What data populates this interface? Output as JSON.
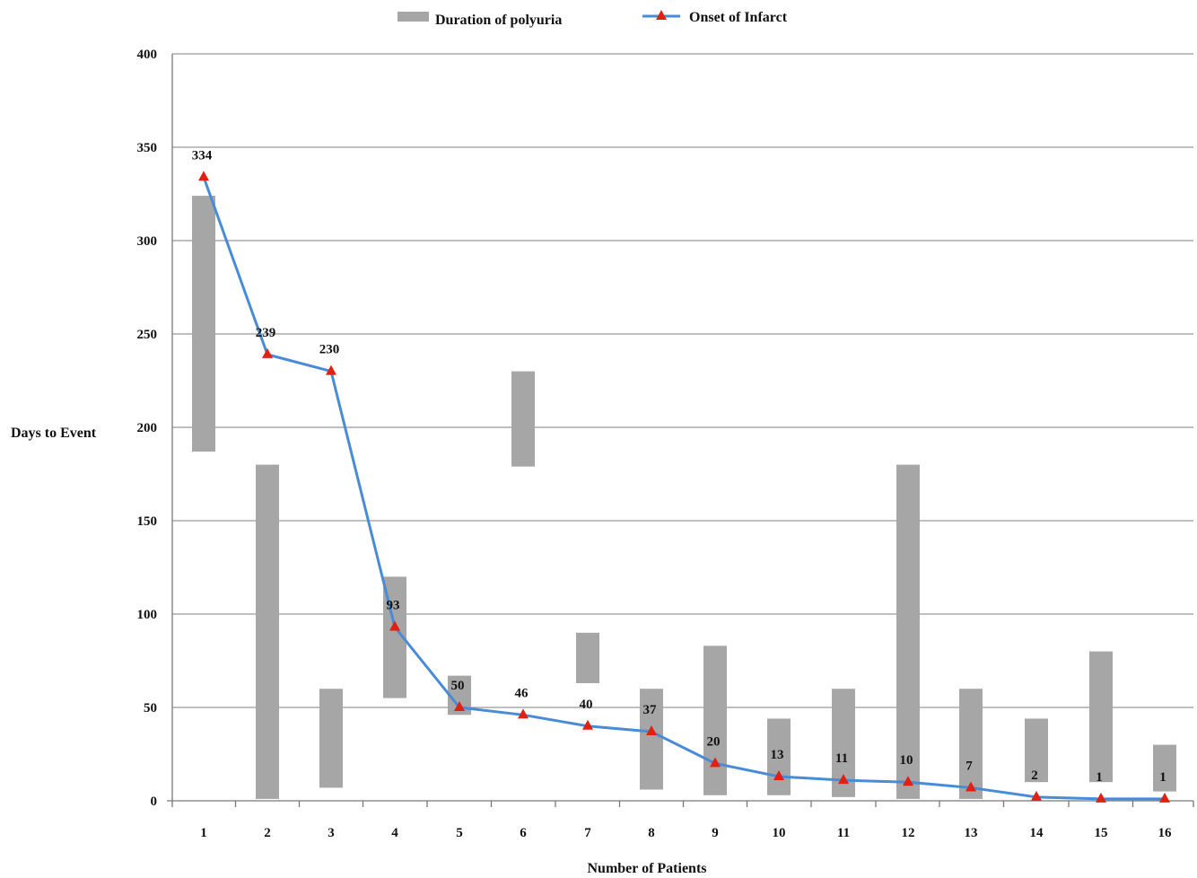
{
  "chart_data": {
    "type": "bar",
    "xlabel": "Number of Patients",
    "ylabel": "Days to Event",
    "ylim": [
      0,
      400
    ],
    "yticks": [
      0,
      50,
      100,
      150,
      200,
      250,
      300,
      350,
      400
    ],
    "grid": true,
    "legend_position": "top",
    "categories": [
      "1",
      "2",
      "3",
      "4",
      "5",
      "6",
      "7",
      "8",
      "9",
      "10",
      "11",
      "12",
      "13",
      "14",
      "15",
      "16"
    ],
    "series": [
      {
        "name": "Duration of polyuria",
        "type": "floating-bar",
        "color": "#a6a6a6",
        "ranges": [
          [
            187,
            324
          ],
          [
            1,
            180
          ],
          [
            7,
            60
          ],
          [
            55,
            120
          ],
          [
            46,
            67
          ],
          [
            179,
            230
          ],
          [
            63,
            90
          ],
          [
            6,
            60
          ],
          [
            3,
            83
          ],
          [
            3,
            44
          ],
          [
            2,
            60
          ],
          [
            1,
            180
          ],
          [
            1,
            60
          ],
          [
            10,
            44
          ],
          [
            10,
            80
          ],
          [
            5,
            30
          ]
        ]
      },
      {
        "name": "Onset of Infarct",
        "type": "line",
        "color": "#4a8bd6",
        "marker_color": "#e02010",
        "values": [
          334,
          239,
          230,
          93,
          50,
          46,
          40,
          37,
          20,
          13,
          11,
          10,
          7,
          2,
          1,
          1
        ],
        "labels": [
          "334",
          "239",
          "230",
          "93",
          "50",
          "46",
          "40",
          "37",
          "20",
          "13",
          "11",
          "10",
          "7",
          "2",
          "1",
          "1"
        ]
      }
    ]
  }
}
